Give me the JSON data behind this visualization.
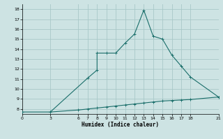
{
  "xlabel": "Humidex (Indice chaleur)",
  "xlim": [
    0,
    21
  ],
  "ylim": [
    7.5,
    18.5
  ],
  "yticks": [
    8,
    9,
    10,
    11,
    12,
    13,
    14,
    15,
    16,
    17,
    18
  ],
  "xticks": [
    0,
    3,
    6,
    7,
    8,
    9,
    10,
    11,
    12,
    13,
    14,
    15,
    16,
    17,
    18,
    21
  ],
  "bg_color": "#cde3e3",
  "grid_color": "#a8c8c8",
  "line_color": "#1a6e6a",
  "line1_x": [
    0,
    3,
    7,
    8,
    8,
    9,
    10,
    11,
    12,
    13,
    14,
    15,
    16,
    17,
    18,
    21
  ],
  "line1_y": [
    7.7,
    7.7,
    11.1,
    11.9,
    13.6,
    13.6,
    13.6,
    14.6,
    15.5,
    17.9,
    15.3,
    15.0,
    13.4,
    12.3,
    11.2,
    9.2
  ],
  "line2_x": [
    3,
    6,
    7,
    8,
    9,
    10,
    11,
    12,
    13,
    14,
    15,
    16,
    17,
    18,
    21
  ],
  "line2_y": [
    7.7,
    7.9,
    8.0,
    8.1,
    8.2,
    8.3,
    8.4,
    8.5,
    8.6,
    8.7,
    8.8,
    8.85,
    8.9,
    8.95,
    9.2
  ]
}
